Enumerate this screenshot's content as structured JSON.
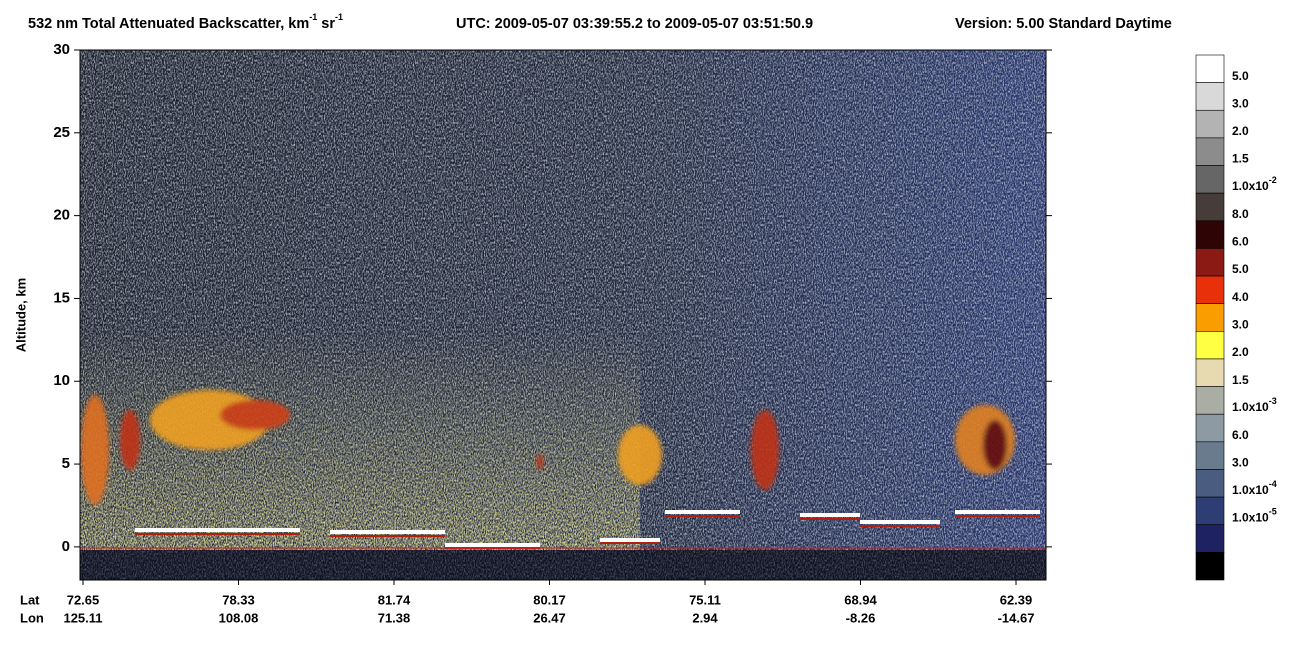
{
  "chart_data": {
    "type": "heatmap",
    "title": [
      "532 nm Total Attenuated Backscatter, km",
      "-1",
      " sr",
      "-1"
    ],
    "utc": "UTC:  2009-05-07 03:39:55.2  to  2009-05-07 03:51:50.9",
    "version": "Version: 5.00  Standard  Daytime",
    "ylabel": "Altitude, km",
    "ylim": [
      -2,
      30
    ],
    "yticks": [
      0,
      5,
      10,
      15,
      20,
      25,
      30
    ],
    "x_rows": [
      {
        "name": "Lat",
        "values": [
          72.65,
          78.33,
          81.74,
          80.17,
          75.11,
          68.94,
          62.39
        ]
      },
      {
        "name": "Lon",
        "values": [
          125.11,
          108.08,
          71.38,
          26.47,
          2.94,
          -8.26,
          -14.67
        ]
      }
    ],
    "colorbar": {
      "colors": [
        "#ffffff",
        "#d9d9d9",
        "#b3b3b3",
        "#8c8c8c",
        "#666666",
        "#463c39",
        "#2f0404",
        "#8b1a14",
        "#e8300a",
        "#fa9d00",
        "#ffff44",
        "#e8dab0",
        "#aaada4",
        "#8d9aa3",
        "#6a7b8d",
        "#4a5d80",
        "#2e3e74",
        "#1e2262",
        "#000000"
      ],
      "labels": [
        "5.0",
        "3.0",
        "2.0",
        "1.5",
        {
          "base": "1.0x10",
          "exp": "-2"
        },
        "8.0",
        "6.0",
        "5.0",
        "4.0",
        "3.0",
        "2.0",
        "1.5",
        {
          "base": "1.0x10",
          "exp": "-3"
        },
        "6.0",
        "3.0",
        {
          "base": "1.0x10",
          "exp": "-4"
        },
        {
          "base": "1.0x10",
          "exp": "-5"
        }
      ]
    }
  }
}
